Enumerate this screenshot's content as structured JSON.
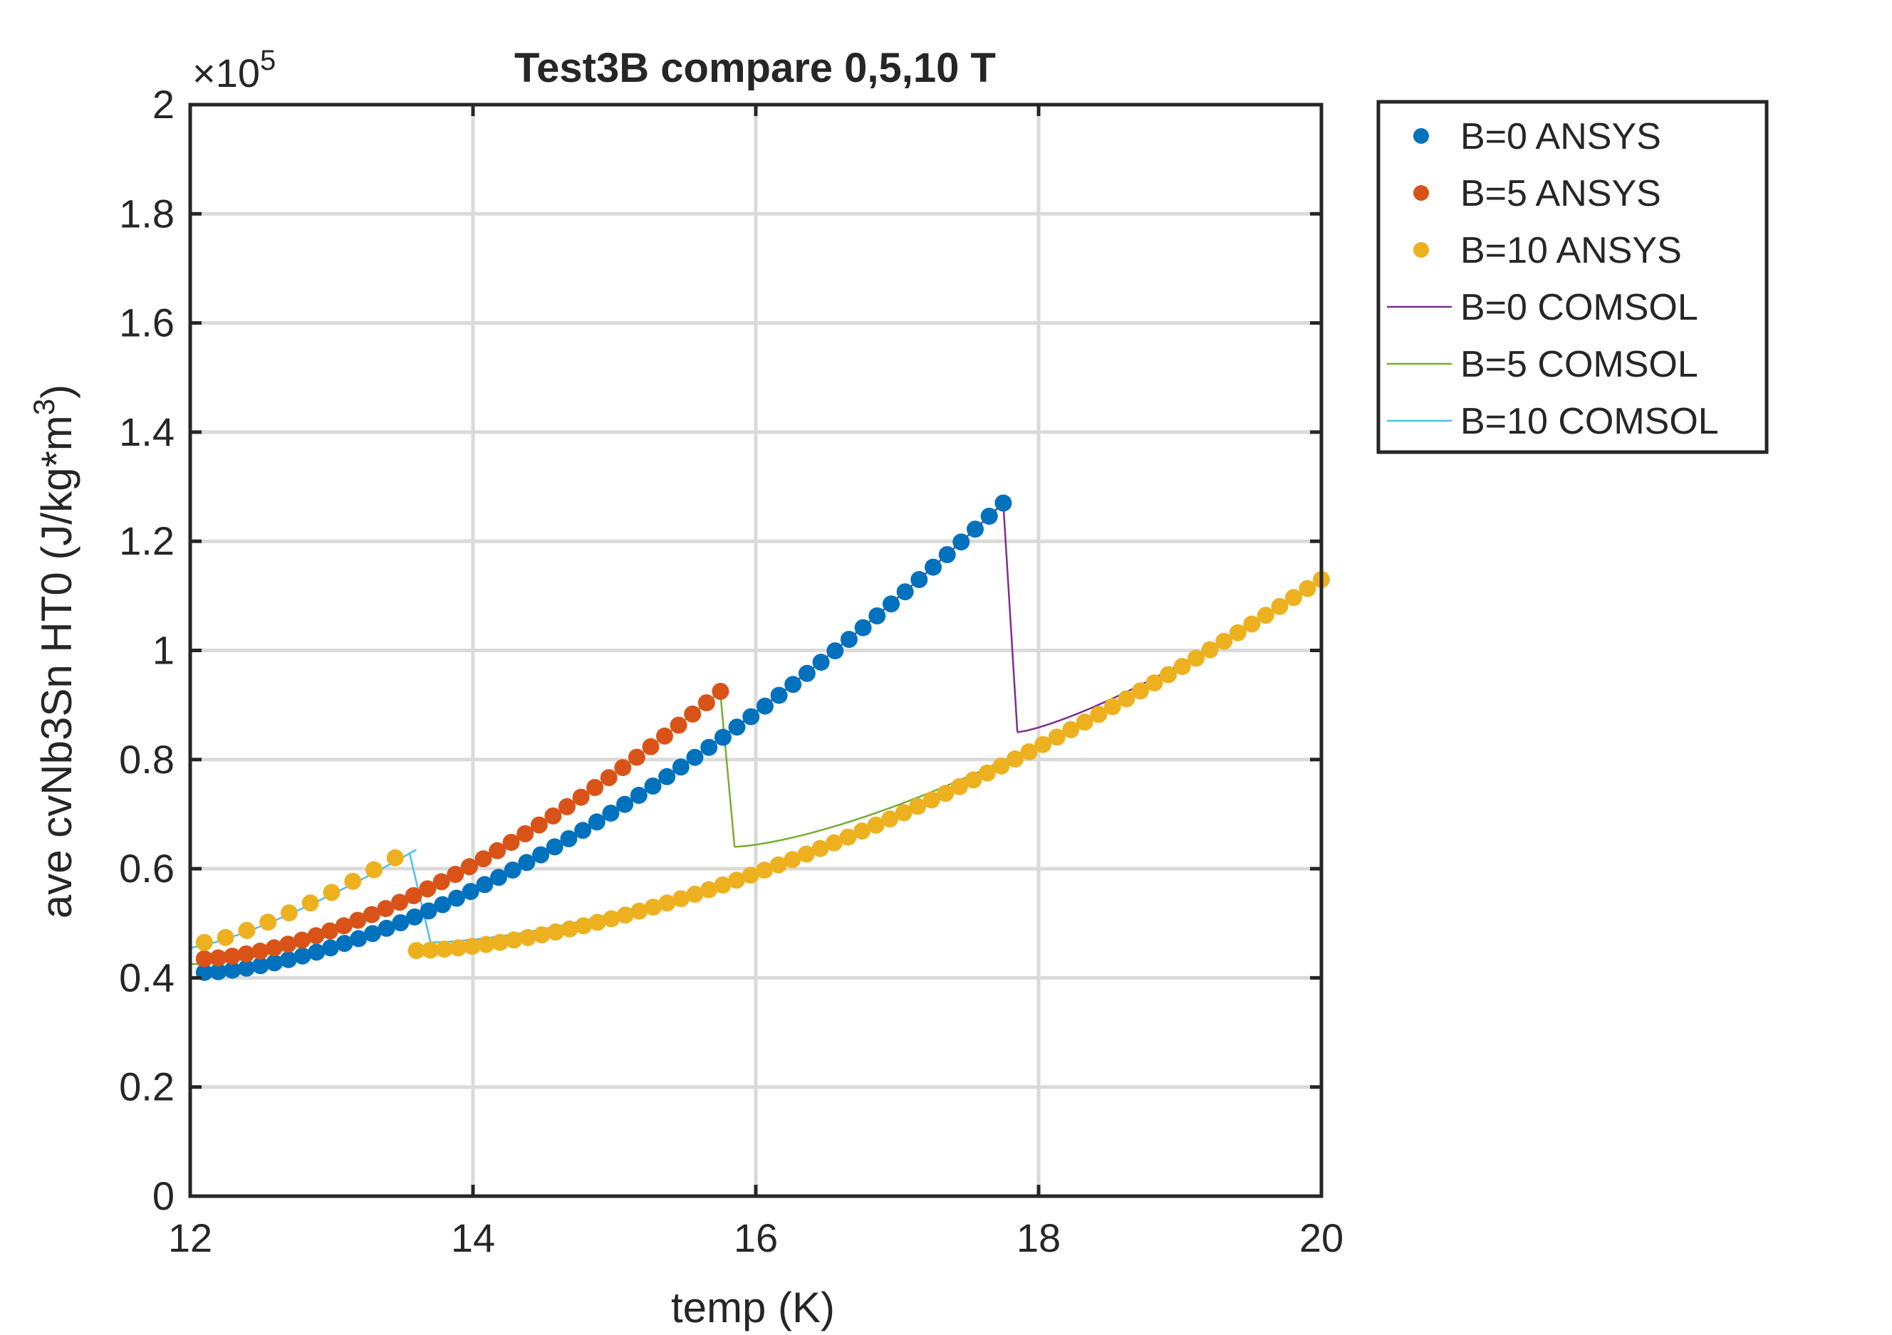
{
  "chart_data": {
    "type": "scatter",
    "title": "Test3B compare 0,5,10 T",
    "xlabel": "temp (K)",
    "ylabel_main": "ave cvNb3Sn HT0 (J/kg*m",
    "ylabel_sup": "3",
    "ylabel_close": ")",
    "y_exponent_prefix": "×10",
    "y_exponent_power": "5",
    "xlim": [
      12,
      20
    ],
    "ylim": [
      0,
      200000
    ],
    "xticks": [
      12,
      14,
      16,
      18,
      20
    ],
    "xtick_labels": [
      "12",
      "14",
      "16",
      "18",
      "20"
    ],
    "yticks": [
      0,
      20000,
      40000,
      60000,
      80000,
      100000,
      120000,
      140000,
      160000,
      180000,
      200000
    ],
    "ytick_labels": [
      "0",
      "0.2",
      "0.4",
      "0.6",
      "0.8",
      "1",
      "1.2",
      "1.4",
      "1.6",
      "1.8",
      "2"
    ],
    "grid": true,
    "legend_position": "outside-top-right",
    "series": [
      {
        "name": "B=0 ANSYS",
        "style": "markers",
        "color": "#0072BD",
        "curves": [
          {
            "x_start": 12.1,
            "x_end": 17.75,
            "y_start": 41000,
            "y_end": 127000,
            "exponent": 1.6,
            "n": 58
          }
        ]
      },
      {
        "name": "B=5 ANSYS",
        "style": "markers",
        "color": "#D95319",
        "curves": [
          {
            "x_start": 12.1,
            "x_end": 15.75,
            "y_start": 43500,
            "y_end": 92500,
            "exponent": 1.6,
            "n": 38
          }
        ]
      },
      {
        "name": "B=10 ANSYS",
        "style": "markers",
        "color": "#EDB120",
        "curves": [
          {
            "x_start": 12.1,
            "x_end": 13.45,
            "y_start": 46500,
            "y_end": 62000,
            "exponent": 1.3,
            "n": 10
          },
          {
            "x_start": 13.6,
            "x_end": 20.0,
            "y_start": 45000,
            "y_end": 113000,
            "exponent": 1.6,
            "n": 66
          }
        ]
      },
      {
        "name": "B=0 COMSOL",
        "style": "line",
        "color": "#7E2F8E",
        "curves": [
          {
            "x_start": 12.0,
            "x_end": 17.75,
            "y_start": 40000,
            "y_end": 127000,
            "exponent": 1.6,
            "n": 80
          },
          {
            "x_start": 17.85,
            "x_end": 20.0,
            "y_start": 85000,
            "y_end": 113000,
            "exponent": 1.3,
            "n": 30
          }
        ],
        "jumps": [
          {
            "x1": 17.75,
            "y1": 127000,
            "x2": 17.85,
            "y2": 85000
          }
        ]
      },
      {
        "name": "B=5 COMSOL",
        "style": "line",
        "color": "#77AC30",
        "curves": [
          {
            "x_start": 12.0,
            "x_end": 15.75,
            "y_start": 42500,
            "y_end": 92500,
            "exponent": 1.6,
            "n": 60
          },
          {
            "x_start": 15.85,
            "x_end": 20.0,
            "y_start": 64000,
            "y_end": 113000,
            "exponent": 1.45,
            "n": 50
          }
        ],
        "jumps": [
          {
            "x1": 15.75,
            "y1": 92000,
            "x2": 15.85,
            "y2": 64000
          }
        ]
      },
      {
        "name": "B=10 COMSOL",
        "style": "line",
        "color": "#4DBEEE",
        "curves": [
          {
            "x_start": 12.0,
            "x_end": 13.6,
            "y_start": 45500,
            "y_end": 63500,
            "exponent": 1.3,
            "n": 20
          },
          {
            "x_start": 13.7,
            "x_end": 20.0,
            "y_start": 46500,
            "y_end": 113000,
            "exponent": 1.6,
            "n": 80
          }
        ],
        "jumps": [
          {
            "x1": 13.55,
            "y1": 63000,
            "x2": 13.7,
            "y2": 46500
          }
        ]
      }
    ]
  }
}
